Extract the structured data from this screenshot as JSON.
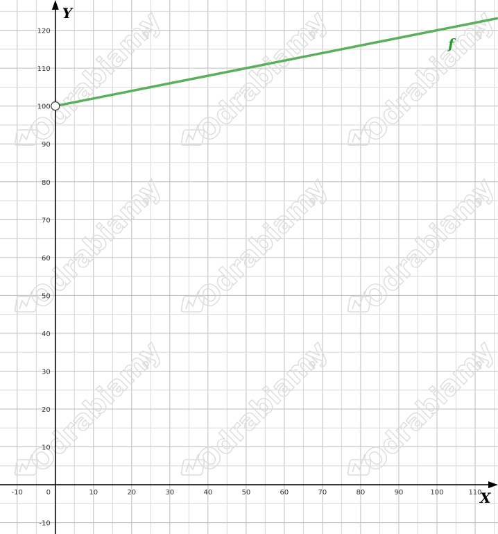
{
  "chart_data": {
    "type": "line",
    "xlabel": "X",
    "ylabel": "Y",
    "xlim": [
      -14.5,
      116
    ],
    "ylim": [
      -13,
      128
    ],
    "x_ticks": [
      -10,
      0,
      10,
      20,
      30,
      40,
      50,
      60,
      70,
      80,
      90,
      100,
      110
    ],
    "y_ticks": [
      -10,
      10,
      20,
      30,
      40,
      50,
      60,
      70,
      80,
      90,
      100,
      110,
      120
    ],
    "origin_label": "0",
    "grid": true,
    "series": [
      {
        "name": "f",
        "color": "#5aaf5a",
        "x": [
          0,
          116
        ],
        "y": [
          100,
          123.2
        ],
        "open_start_point": [
          0,
          100
        ]
      }
    ]
  },
  "watermark": {
    "text": "Odrabiamy",
    "suffix": "pl",
    "icon": "odrabiamy-logo-icon"
  }
}
